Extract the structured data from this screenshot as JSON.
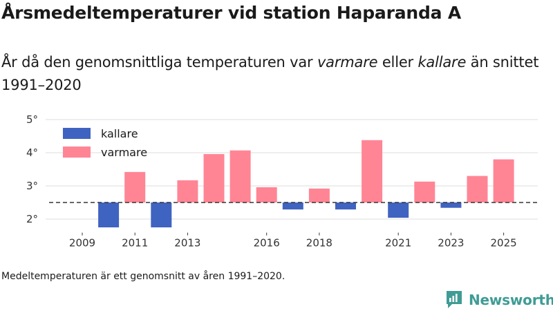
{
  "title": "Årsmedeltemperaturer vid station Haparanda A",
  "subtitle": {
    "part1": "År då den genomsnittliga temperaturen var ",
    "warmer": "varmare",
    "part2": " eller ",
    "colder": "kallare",
    "part3": " än snittet 1991–2020"
  },
  "footnote": "Medeltemperaturen är ett genomsnitt av åren 1991–2020.",
  "brand": {
    "name": "Newsworthy",
    "icon": "newsworthy-logo-icon",
    "color": "#3f9c95"
  },
  "chart_data": {
    "type": "bar",
    "baseline": 2.5,
    "ylim": [
      1.8,
      5.0
    ],
    "yticks": [
      2,
      3,
      4,
      5
    ],
    "ytick_labels": [
      "2°",
      "3°",
      "4°",
      "5°"
    ],
    "categories": [
      2009,
      2010,
      2011,
      2012,
      2013,
      2014,
      2015,
      2016,
      2017,
      2018,
      2019,
      2020,
      2021,
      2022,
      2023,
      2024,
      2025
    ],
    "xtick_labels": [
      {
        "year": 2009,
        "label": "2009"
      },
      {
        "year": 2011,
        "label": "2011"
      },
      {
        "year": 2013,
        "label": "2013"
      },
      {
        "year": 2016,
        "label": "2016"
      },
      {
        "year": 2018,
        "label": "2018"
      },
      {
        "year": 2021,
        "label": "2021"
      },
      {
        "year": 2023,
        "label": "2023"
      },
      {
        "year": 2025,
        "label": "2025"
      }
    ],
    "values": [
      null,
      1.75,
      3.42,
      1.75,
      3.17,
      3.96,
      4.07,
      2.96,
      2.29,
      2.92,
      2.29,
      4.38,
      2.04,
      3.13,
      2.34,
      3.3,
      3.8
    ],
    "legend": [
      {
        "key": "kallare",
        "label": "kallare",
        "color": "#3f63c0"
      },
      {
        "key": "varmare",
        "label": "varmare",
        "color": "#ff8595"
      }
    ],
    "colors": {
      "colder": "#3f63c0",
      "warmer": "#ff8595",
      "grid": "#dddddd",
      "baseline": "#333333"
    }
  }
}
